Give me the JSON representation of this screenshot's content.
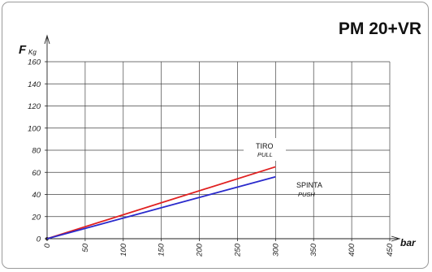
{
  "chart_data": {
    "type": "line",
    "title": "PM 20+VR",
    "ylabel": "F",
    "ylabel_unit": "Kg",
    "xlabel": "bar",
    "xlim": [
      0,
      450
    ],
    "ylim": [
      0,
      160
    ],
    "x_ticks": [
      0,
      50,
      100,
      150,
      200,
      250,
      300,
      350,
      400,
      450
    ],
    "y_ticks": [
      0,
      20,
      40,
      60,
      80,
      100,
      120,
      140,
      160
    ],
    "grid": true,
    "series": [
      {
        "name": "TIRO",
        "subname": "PULL",
        "color": "#e02020",
        "x": [
          0,
          300
        ],
        "y": [
          0,
          65
        ]
      },
      {
        "name": "SPINTA",
        "subname": "PUSH",
        "color": "#2a2acc",
        "x": [
          0,
          300
        ],
        "y": [
          0,
          56
        ]
      }
    ]
  }
}
